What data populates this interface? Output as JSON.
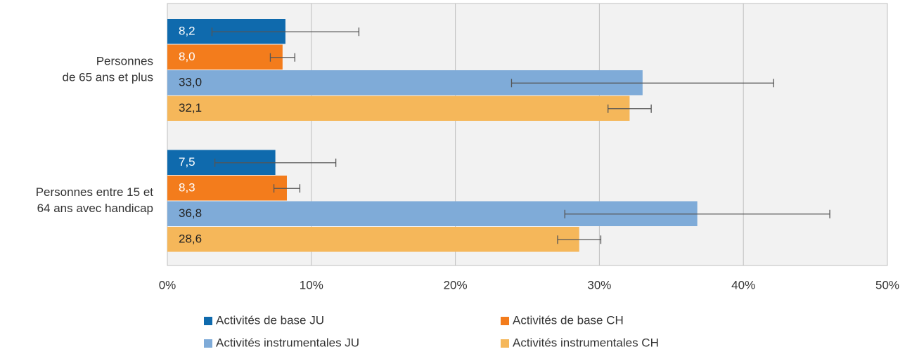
{
  "chart_data": {
    "type": "bar",
    "orientation": "horizontal",
    "categories": [
      [
        "Personnes",
        "de 65 ans et plus"
      ],
      [
        "Personnes entre 15 et",
        "64 ans avec handicap"
      ]
    ],
    "series": [
      {
        "name": "Activités de base JU",
        "color": "#0f6aad",
        "label_color": "#ffffff",
        "values": [
          8.2,
          7.5
        ],
        "value_labels": [
          "8,2",
          "7,5"
        ],
        "errors": [
          5.1,
          4.2
        ]
      },
      {
        "name": "Activités de base CH",
        "color": "#f37c1c",
        "label_color": "#ffffff",
        "values": [
          8.0,
          8.3
        ],
        "value_labels": [
          "8,0",
          "8,3"
        ],
        "errors": [
          0.85,
          0.9
        ]
      },
      {
        "name": "Activités instrumentales JU",
        "color": "#7fabd8",
        "label_color": "#222222",
        "values": [
          33.0,
          36.8
        ],
        "value_labels": [
          "33,0",
          "36,8"
        ],
        "errors": [
          9.1,
          9.2
        ]
      },
      {
        "name": "Activités instrumentales CH",
        "color": "#f5b75a",
        "label_color": "#222222",
        "values": [
          32.1,
          28.6
        ],
        "value_labels": [
          "32,1",
          "28,6"
        ],
        "errors": [
          1.5,
          1.5
        ]
      }
    ],
    "xlim": [
      0,
      50
    ],
    "xticks": [
      {
        "value": 0,
        "label": "0%"
      },
      {
        "value": 10,
        "label": "10%"
      },
      {
        "value": 20,
        "label": "20%"
      },
      {
        "value": 30,
        "label": "30%"
      },
      {
        "value": 40,
        "label": "40%"
      },
      {
        "value": 50,
        "label": "50%"
      }
    ],
    "grid": true
  }
}
